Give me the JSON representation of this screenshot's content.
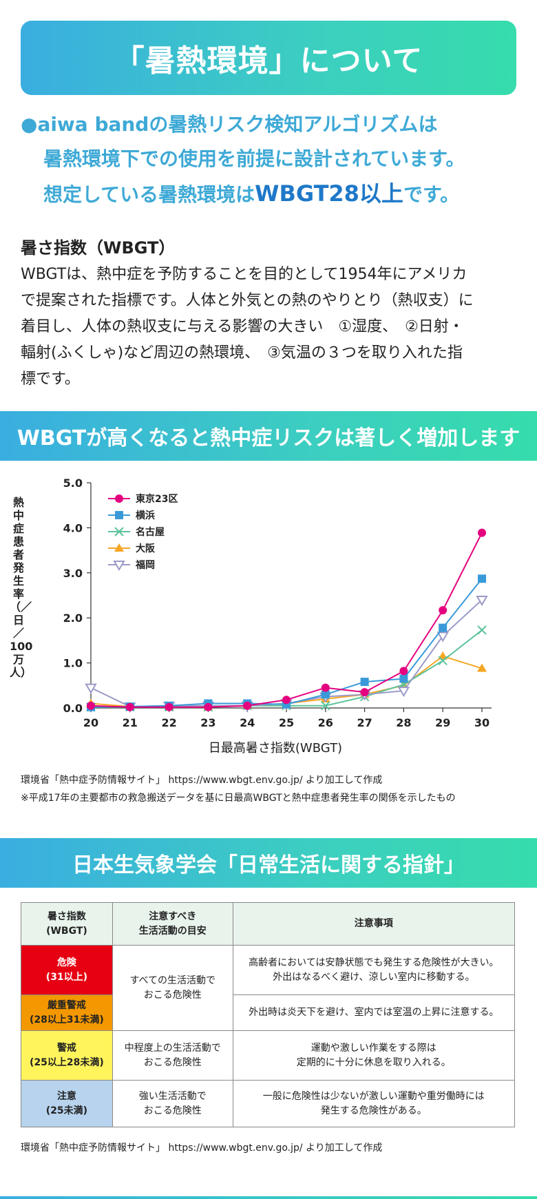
{
  "header": {
    "title": "「暑熱環境」について"
  },
  "lead": {
    "bullet": "●",
    "line1": "aiwa bandの暑熱リスク検知アルゴリズムは",
    "line2": "暑熱環境下での使用を前提に設計されています。",
    "line3_pre": "想定している暑熱環境は",
    "line3_highlight": "WBGT28以上",
    "line3_post": "です。"
  },
  "wbgt": {
    "heading": "暑さ指数（WBGT）",
    "body_lines": [
      "WBGTは、熱中症を予防することを目的として1954年にアメリカ",
      "で提案された指標です。人体と外気との熱のやりとり（熱収支）に",
      "着目し、人体の熱収支に与える影響の大きい　①湿度、　②日射・",
      "輻射(ふくしゃ)など周辺の熱環境、　③気温の３つを取り入れた指",
      "標です。"
    ]
  },
  "chart_section": {
    "banner": "WBGTが高くなると熱中症リスクは著しく増加します"
  },
  "chart_data": {
    "type": "line",
    "title": "",
    "xlabel": "日最高暑さ指数(WBGT)",
    "ylabel": "熱中症患者発生率（／日／100万人）",
    "x": [
      20,
      21,
      22,
      23,
      24,
      25,
      26,
      27,
      28,
      29,
      30
    ],
    "ylim": [
      0,
      5
    ],
    "y_ticks": [
      "0.0",
      "1.0",
      "2.0",
      "3.0",
      "4.0",
      "5.0"
    ],
    "legend_position": "top-left",
    "series": [
      {
        "name": "東京23区",
        "color": "#e4007f",
        "marker": "circle",
        "values": [
          0.05,
          0.02,
          0.02,
          0.02,
          0.05,
          0.18,
          0.45,
          0.35,
          0.82,
          2.17,
          3.89
        ]
      },
      {
        "name": "横浜",
        "color": "#3a9ad9",
        "marker": "square",
        "values": [
          0.02,
          0.03,
          0.05,
          0.1,
          0.1,
          0.08,
          0.3,
          0.58,
          0.65,
          1.78,
          2.87
        ]
      },
      {
        "name": "名古屋",
        "color": "#5cc49a",
        "marker": "x",
        "values": [
          0.02,
          0.02,
          0.02,
          0.02,
          0.05,
          0.05,
          0.05,
          0.25,
          0.52,
          1.05,
          1.73
        ]
      },
      {
        "name": "大阪",
        "color": "#f5a623",
        "marker": "triangle",
        "values": [
          0.1,
          0.03,
          0.02,
          0.02,
          0.05,
          0.1,
          0.2,
          0.3,
          0.5,
          1.15,
          0.88
        ]
      },
      {
        "name": "福岡",
        "color": "#9a9ac8",
        "marker": "triangle-down",
        "values": [
          0.45,
          0.03,
          0.05,
          0.05,
          0.05,
          0.1,
          0.25,
          0.3,
          0.38,
          1.6,
          2.4
        ]
      }
    ]
  },
  "chart_source": {
    "line1": "環境省「熱中症予防情報サイト」 https://www.wbgt.env.go.jp/ より加工して作成",
    "line2": "※平成17年の主要都市の救急搬送データを基に日最高WBGTと熱中症患者発生率の関係を示したもの"
  },
  "guide_section": {
    "banner": "日本生気象学会「日常生活に関する指針」"
  },
  "guide_table": {
    "headers": {
      "h1": "暑さ指数\n(WBGT)",
      "h2": "注意すべき\n生活活動の目安",
      "h3": "注意事項"
    },
    "rows": {
      "danger": {
        "level": "危険\n(31以上)",
        "activity": "すべての生活活動で\nおこる危険性",
        "note": "高齢者においては安静状態でも発生する危険性が大きい。\n外出はなるべく避け、涼しい室内に移動する。"
      },
      "severe": {
        "level": "厳重警戒\n(28以上31未満)",
        "note": "外出時は炎天下を避け、室内では室温の上昇に注意する。"
      },
      "warning": {
        "level": "警戒\n(25以上28未満)",
        "activity": "中程度上の生活活動で\nおこる危険性",
        "note": "運動や激しい作業をする際は\n定期的に十分に休息を取り入れる。"
      },
      "caution": {
        "level": "注意\n(25未満)",
        "activity": "強い生活活動で\nおこる危険性",
        "note": "一般に危険性は少ないが激しい運動や重労働時には\n発生する危険性がある。"
      }
    },
    "colors": {
      "danger": "#e60012",
      "severe": "#f39800",
      "warning": "#fff45c",
      "caution": "#b7d3ee"
    }
  },
  "guide_source": "環境省「熱中症予防情報サイト」 https://www.wbgt.env.go.jp/ より加工して作成"
}
